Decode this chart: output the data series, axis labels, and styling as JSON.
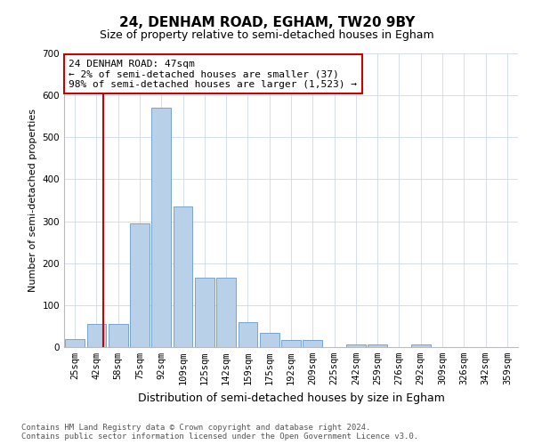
{
  "title": "24, DENHAM ROAD, EGHAM, TW20 9BY",
  "subtitle": "Size of property relative to semi-detached houses in Egham",
  "xlabel": "Distribution of semi-detached houses by size in Egham",
  "ylabel": "Number of semi-detached properties",
  "footnote": "Contains HM Land Registry data © Crown copyright and database right 2024.\nContains public sector information licensed under the Open Government Licence v3.0.",
  "categories": [
    "25sqm",
    "42sqm",
    "58sqm",
    "75sqm",
    "92sqm",
    "109sqm",
    "125sqm",
    "142sqm",
    "159sqm",
    "175sqm",
    "192sqm",
    "209sqm",
    "225sqm",
    "242sqm",
    "259sqm",
    "276sqm",
    "292sqm",
    "309sqm",
    "326sqm",
    "342sqm",
    "359sqm"
  ],
  "values": [
    20,
    55,
    55,
    295,
    570,
    335,
    165,
    165,
    60,
    35,
    17,
    17,
    0,
    7,
    7,
    0,
    7,
    0,
    0,
    0,
    0
  ],
  "bar_color": "#b8d0e8",
  "bar_edge_color": "#6699cc",
  "property_line_color": "#cc0000",
  "annotation_text": "24 DENHAM ROAD: 47sqm\n← 2% of semi-detached houses are smaller (37)\n98% of semi-detached houses are larger (1,523) →",
  "annotation_box_color": "#cc0000",
  "ylim": [
    0,
    700
  ],
  "yticks": [
    0,
    100,
    200,
    300,
    400,
    500,
    600,
    700
  ],
  "title_fontsize": 11,
  "subtitle_fontsize": 9,
  "ylabel_fontsize": 8,
  "xlabel_fontsize": 9,
  "tick_fontsize": 7.5,
  "annotation_fontsize": 8,
  "footnote_fontsize": 6.5,
  "background_color": "#ffffff",
  "grid_color": "#ccd8ec"
}
